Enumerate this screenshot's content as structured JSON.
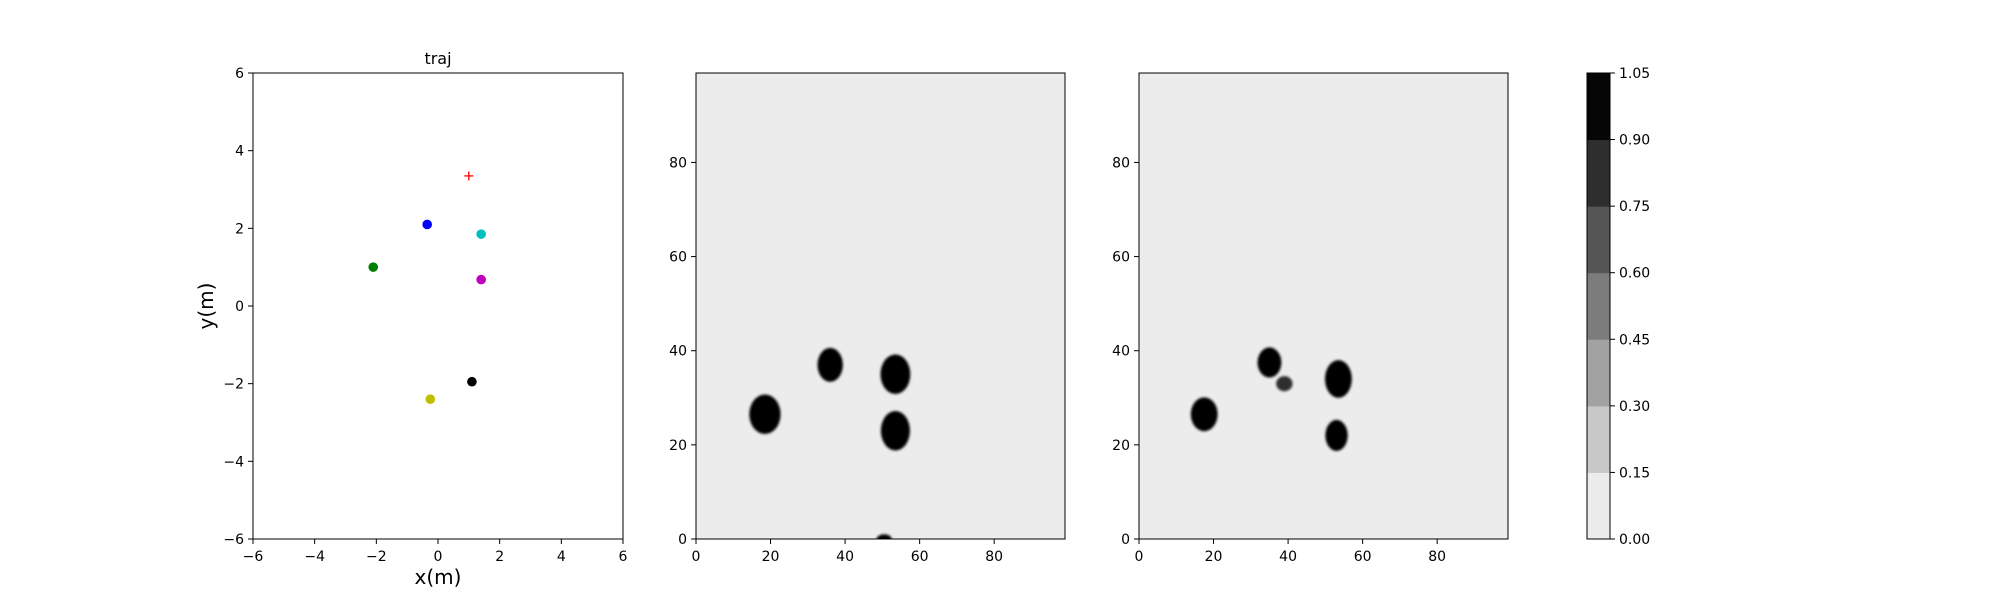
{
  "chart_data": [
    {
      "type": "scatter",
      "title": "traj",
      "xlabel": "x(m)",
      "ylabel": "y(m)",
      "xlim": [
        -6,
        6
      ],
      "ylim": [
        -6,
        6
      ],
      "xticks": [
        -6,
        -4,
        -2,
        0,
        2,
        4,
        6
      ],
      "yticks": [
        -6,
        -4,
        -2,
        0,
        2,
        4,
        6
      ],
      "grid": false,
      "points": [
        {
          "x": -0.35,
          "y": 2.1,
          "color": "#0000ff",
          "marker": "circle"
        },
        {
          "x": 1.4,
          "y": 1.85,
          "color": "#00bfbf",
          "marker": "circle"
        },
        {
          "x": -2.1,
          "y": 1.0,
          "color": "#008000",
          "marker": "circle"
        },
        {
          "x": 1.4,
          "y": 0.68,
          "color": "#bf00bf",
          "marker": "circle"
        },
        {
          "x": 1.1,
          "y": -1.95,
          "color": "#000000",
          "marker": "circle"
        },
        {
          "x": -0.25,
          "y": -2.4,
          "color": "#bfbf00",
          "marker": "circle"
        },
        {
          "x": 1.0,
          "y": 3.35,
          "color": "#ff0000",
          "marker": "plus"
        }
      ]
    },
    {
      "type": "heatmap",
      "title": "",
      "xlim": [
        0,
        99
      ],
      "ylim": [
        0,
        99
      ],
      "xticks": [
        0,
        20,
        40,
        60,
        80
      ],
      "yticks": [
        0,
        20,
        40,
        60,
        80
      ],
      "background_value": 0.05,
      "blobs": [
        {
          "cx": 18.5,
          "cy": 26.5,
          "rx": 4.2,
          "ry": 4.2,
          "value": 1.0
        },
        {
          "cx": 36,
          "cy": 37,
          "rx": 3.4,
          "ry": 3.6,
          "value": 1.0
        },
        {
          "cx": 53.5,
          "cy": 35,
          "rx": 4.0,
          "ry": 4.2,
          "value": 1.0
        },
        {
          "cx": 53.5,
          "cy": 23,
          "rx": 3.9,
          "ry": 4.2,
          "value": 1.0
        },
        {
          "cx": 50.5,
          "cy": 0,
          "rx": 2.0,
          "ry": 1.0,
          "value": 1.0
        }
      ]
    },
    {
      "type": "heatmap",
      "title": "",
      "xlim": [
        0,
        99
      ],
      "ylim": [
        0,
        99
      ],
      "xticks": [
        0,
        20,
        40,
        60,
        80
      ],
      "yticks": [
        0,
        20,
        40,
        60,
        80
      ],
      "background_value": 0.05,
      "blobs": [
        {
          "cx": 17.5,
          "cy": 26.5,
          "rx": 3.6,
          "ry": 3.6,
          "value": 1.0
        },
        {
          "cx": 35,
          "cy": 37.5,
          "rx": 3.2,
          "ry": 3.2,
          "value": 1.0
        },
        {
          "cx": 39,
          "cy": 33,
          "rx": 2.2,
          "ry": 1.6,
          "value": 0.75
        },
        {
          "cx": 53.5,
          "cy": 34,
          "rx": 3.6,
          "ry": 4.0,
          "value": 1.0
        },
        {
          "cx": 53,
          "cy": 22,
          "rx": 3.0,
          "ry": 3.3,
          "value": 1.0
        }
      ]
    }
  ],
  "colorbar": {
    "min": 0.0,
    "max": 1.05,
    "ticks": [
      "0.00",
      "0.15",
      "0.30",
      "0.45",
      "0.60",
      "0.75",
      "0.90",
      "1.05"
    ],
    "levels": [
      "#ececec",
      "#c8c8c8",
      "#a2a2a2",
      "#7c7c7c",
      "#565656",
      "#2e2e2e",
      "#060606"
    ]
  }
}
